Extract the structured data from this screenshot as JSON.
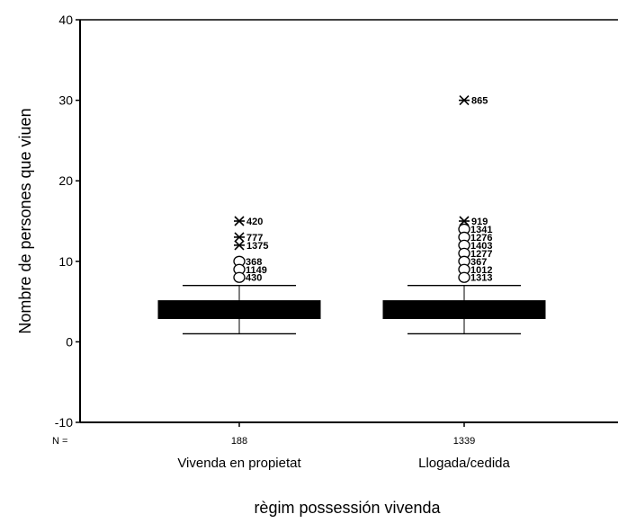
{
  "chart_data": {
    "type": "boxplot",
    "xlabel": "règim possessión vivenda",
    "ylabel": "Nombre de persones que viuen",
    "ylim": [
      -10,
      40
    ],
    "yticks": [
      -10,
      0,
      10,
      20,
      30,
      40
    ],
    "n_label": "N =",
    "grid": false,
    "categories": [
      {
        "name": "Vivenda en propietat",
        "n": "188",
        "min": 1,
        "q1": 3,
        "median": 4,
        "q3": 5,
        "max": 7,
        "outliers": [
          {
            "value": 10,
            "label": "368",
            "marker": "circle"
          },
          {
            "value": 9,
            "label": "1149",
            "marker": "circle"
          },
          {
            "value": 8,
            "label": "430",
            "marker": "circle"
          }
        ],
        "extremes": [
          {
            "value": 15,
            "label": "420",
            "marker": "star"
          },
          {
            "value": 13,
            "label": "777",
            "marker": "star"
          },
          {
            "value": 12,
            "label": "1375",
            "marker": "star"
          }
        ]
      },
      {
        "name": "Llogada/cedida",
        "n": "1339",
        "min": 1,
        "q1": 3,
        "median": 4,
        "q3": 5,
        "max": 7,
        "outliers": [
          {
            "value": 14,
            "label": "1341",
            "marker": "circle"
          },
          {
            "value": 13,
            "label": "1276",
            "marker": "circle"
          },
          {
            "value": 12,
            "label": "1403",
            "marker": "circle"
          },
          {
            "value": 11,
            "label": "1277",
            "marker": "circle"
          },
          {
            "value": 10,
            "label": "367",
            "marker": "circle"
          },
          {
            "value": 9,
            "label": "1012",
            "marker": "circle"
          },
          {
            "value": 8,
            "label": "1313",
            "marker": "circle"
          }
        ],
        "extremes": [
          {
            "value": 30,
            "label": "865",
            "marker": "star"
          },
          {
            "value": 15,
            "label": "919",
            "marker": "star"
          }
        ]
      }
    ],
    "colors": {
      "box_fill": "#000000",
      "axis": "#000000",
      "background": "#ffffff"
    }
  }
}
